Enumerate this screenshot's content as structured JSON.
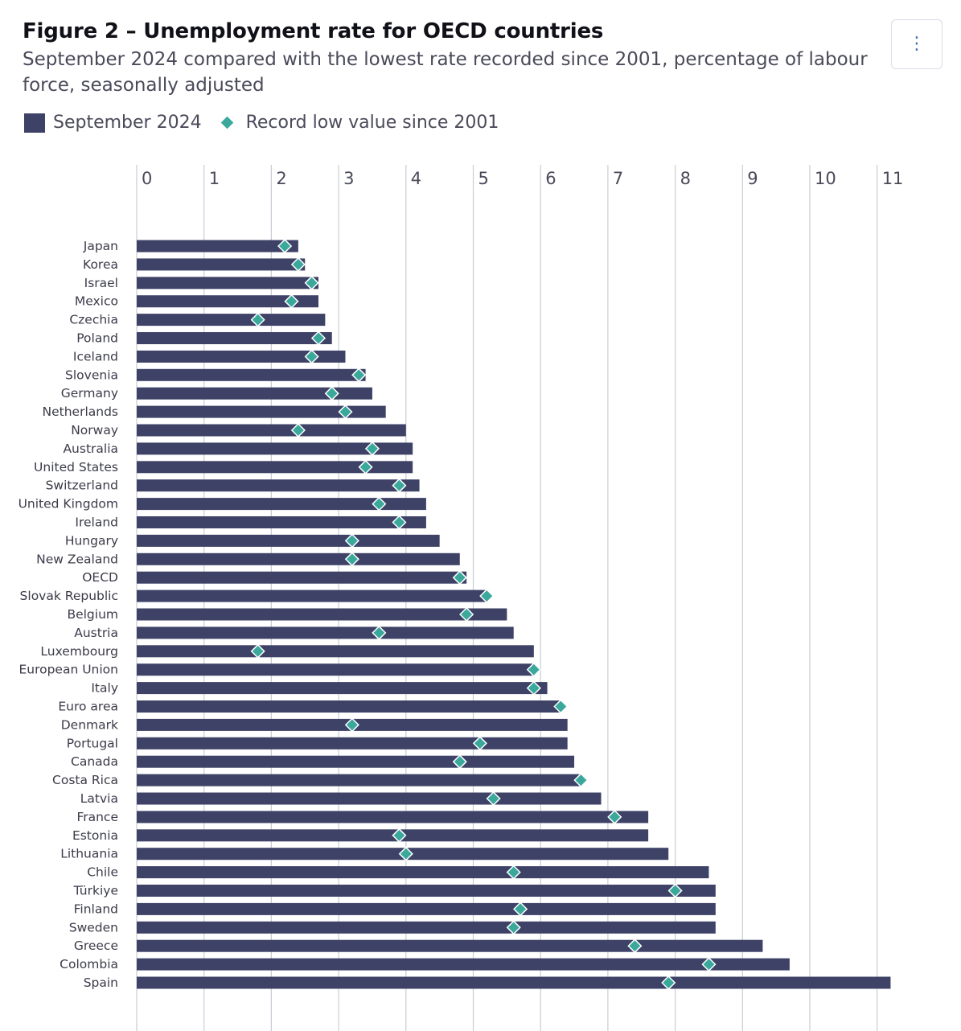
{
  "header": {
    "title": "Figure 2 – Unemployment rate for OECD countries",
    "subtitle": "September 2024 compared with the lowest rate recorded since 2001, percentage of labour force, seasonally adjusted",
    "menu_icon": "vertical-dots-icon",
    "menu_glyph": "⋮"
  },
  "legend": {
    "bar_label": "September 2024",
    "marker_label": "Record low value since 2001"
  },
  "colors": {
    "bar": "#3e4266",
    "marker": "#3aa99c",
    "grid": "#c9ccd6"
  },
  "chart_data": {
    "type": "bar",
    "orientation": "horizontal",
    "title": "Figure 2 – Unemployment rate for OECD countries",
    "xlim": [
      0,
      11
    ],
    "ticks": [
      0,
      1,
      2,
      3,
      4,
      5,
      6,
      7,
      8,
      9,
      10,
      11
    ],
    "grid": true,
    "legend_position": "top-left",
    "categories": [
      "Japan",
      "Korea",
      "Israel",
      "Mexico",
      "Czechia",
      "Poland",
      "Iceland",
      "Slovenia",
      "Germany",
      "Netherlands",
      "Norway",
      "Australia",
      "United States",
      "Switzerland",
      "United Kingdom",
      "Ireland",
      "Hungary",
      "New Zealand",
      "OECD",
      "Slovak Republic",
      "Belgium",
      "Austria",
      "Luxembourg",
      "European Union",
      "Italy",
      "Euro area",
      "Denmark",
      "Portugal",
      "Canada",
      "Costa Rica",
      "Latvia",
      "France",
      "Estonia",
      "Lithuania",
      "Chile",
      "Türkiye",
      "Finland",
      "Sweden",
      "Greece",
      "Colombia",
      "Spain"
    ],
    "series": [
      {
        "name": "September 2024",
        "type": "bar",
        "values": [
          2.4,
          2.5,
          2.7,
          2.7,
          2.8,
          2.9,
          3.1,
          3.4,
          3.5,
          3.7,
          4.0,
          4.1,
          4.1,
          4.2,
          4.3,
          4.3,
          4.5,
          4.8,
          4.9,
          5.2,
          5.5,
          5.6,
          5.9,
          5.9,
          6.1,
          6.3,
          6.4,
          6.4,
          6.5,
          6.6,
          6.9,
          7.6,
          7.6,
          7.9,
          8.5,
          8.6,
          8.6,
          8.6,
          9.3,
          9.7,
          11.2
        ]
      },
      {
        "name": "Record low value since 2001",
        "type": "scatter",
        "values": [
          2.2,
          2.4,
          2.6,
          2.3,
          1.8,
          2.7,
          2.6,
          3.3,
          2.9,
          3.1,
          2.4,
          3.5,
          3.4,
          3.9,
          3.6,
          3.9,
          3.2,
          3.2,
          4.8,
          5.2,
          4.9,
          3.6,
          1.8,
          5.9,
          5.9,
          6.3,
          3.2,
          5.1,
          4.8,
          6.6,
          5.3,
          7.1,
          3.9,
          4.0,
          5.6,
          8.0,
          5.7,
          5.6,
          7.4,
          8.5,
          7.9
        ]
      }
    ]
  }
}
